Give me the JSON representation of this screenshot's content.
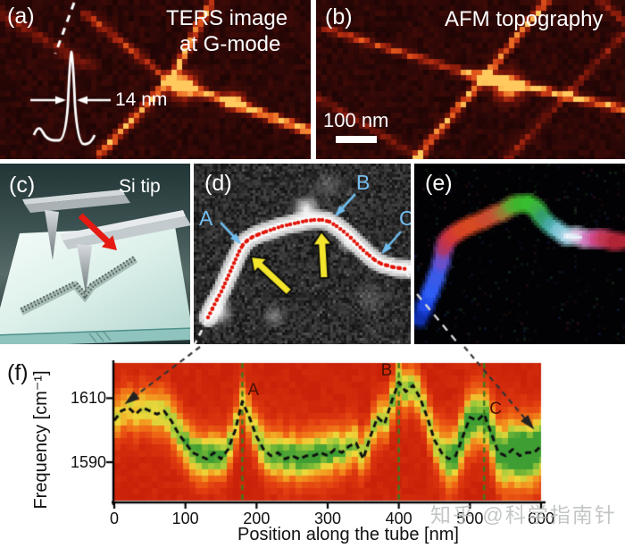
{
  "watermark": "知乎 @科学指南针",
  "panels": {
    "a": {
      "label": "(a)",
      "title_line1": "TERS image",
      "title_line2": "at G-mode",
      "fwhm": "14 nm"
    },
    "b": {
      "label": "(b)",
      "title": "AFM topography",
      "scalebar": "100 nm"
    },
    "c": {
      "label": "(c)",
      "tip": "Si tip"
    },
    "d": {
      "label": "(d)",
      "markers": [
        "A",
        "B",
        "C"
      ]
    },
    "e": {
      "label": "(e)"
    },
    "f": {
      "label": "(f)"
    }
  },
  "chart_data": {
    "type": "heatmap",
    "title": "",
    "xlabel": "Position along the tube [nm]",
    "ylabel": "Frequency [cm⁻¹]",
    "xlim": [
      0,
      600
    ],
    "ylim": [
      1578,
      1621
    ],
    "xticks": [
      0,
      100,
      200,
      300,
      400,
      500,
      600
    ],
    "yticks": [
      1610,
      1590
    ],
    "grid": false,
    "legend": "none",
    "colormap": [
      "#c92209",
      "#e03b10",
      "#ee6414",
      "#f29a20",
      "#f0d73a",
      "#a3cb3a",
      "#3f9e33"
    ],
    "marker_lines": [
      {
        "label": "A",
        "x": 180
      },
      {
        "label": "B",
        "x": 400
      },
      {
        "label": "C",
        "x": 520
      }
    ],
    "curve": {
      "x": [
        0,
        10,
        20,
        30,
        40,
        50,
        60,
        70,
        80,
        90,
        100,
        110,
        120,
        130,
        140,
        150,
        160,
        170,
        180,
        190,
        200,
        210,
        220,
        230,
        240,
        250,
        260,
        270,
        280,
        290,
        300,
        310,
        320,
        330,
        340,
        350,
        360,
        370,
        380,
        390,
        400,
        410,
        420,
        430,
        440,
        450,
        460,
        470,
        480,
        490,
        500,
        510,
        520,
        530,
        540,
        550,
        560,
        570,
        580,
        590,
        600
      ],
      "y": [
        1603,
        1606,
        1607,
        1605,
        1607,
        1606,
        1605,
        1606,
        1603,
        1599,
        1596,
        1593,
        1592,
        1591,
        1593,
        1591,
        1594,
        1600,
        1609,
        1604,
        1598,
        1594,
        1592,
        1593,
        1591,
        1592,
        1591,
        1592,
        1592,
        1593,
        1592,
        1594,
        1593,
        1595,
        1596,
        1591,
        1598,
        1604,
        1602,
        1609,
        1615,
        1612,
        1614,
        1610,
        1604,
        1597,
        1593,
        1591,
        1592,
        1598,
        1604,
        1603,
        1605,
        1599,
        1593,
        1592,
        1594,
        1592,
        1593,
        1593,
        1595
      ]
    }
  }
}
